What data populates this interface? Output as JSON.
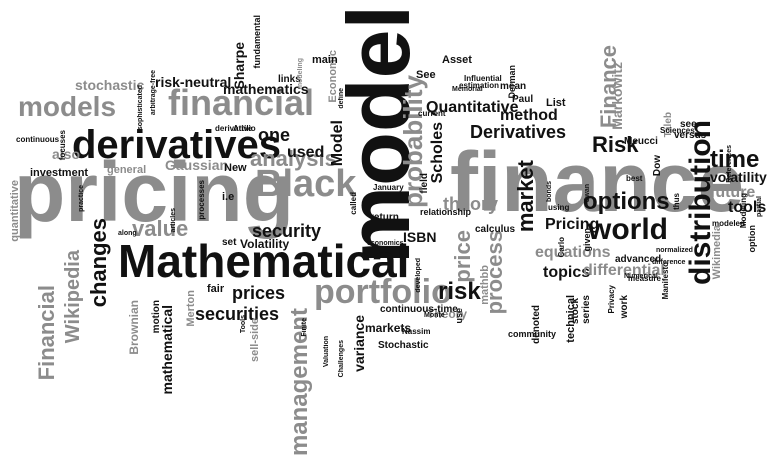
{
  "words": [
    "model",
    "finance",
    "pricing",
    "Mathematical",
    "derivatives",
    "financial",
    "models",
    "Black",
    "analysis",
    "portfolio",
    "risk",
    "market",
    "distribution",
    "time",
    "Risk",
    "options",
    "world",
    "probability",
    "Finance",
    "theory",
    "price",
    "process",
    "management",
    "changes",
    "Financial",
    "Wikipedia",
    "value",
    "prices",
    "securities",
    "security",
    "Derivatives",
    "method",
    "Quantitative",
    "Pricing",
    "equations",
    "topics",
    "differential",
    "mathematical",
    "Brownian",
    "Gaussian",
    "stochastic",
    "risk-neutral",
    "Sharpe",
    "mathematics",
    "Markowitz",
    "tools",
    "future",
    "volatility",
    "variance",
    "Scholes",
    "Model",
    "one",
    "used",
    "also",
    "Volatility",
    "ISBN",
    "markets",
    "Stochastic",
    "Theory",
    "quantitative",
    "investment",
    "general",
    "New",
    "i.e",
    "Merton",
    "motion",
    "fair",
    "set",
    "sell-side",
    "Economic",
    "fundamental",
    "links",
    "main",
    "Asset",
    "See",
    "List",
    "Paul",
    "mean",
    "Derman",
    "estimation",
    "Meucci",
    "Dow",
    "Taleb",
    "see",
    "versus",
    "modeled",
    "Wikimedia",
    "Modeling",
    "option",
    "work",
    "advanced",
    "given",
    "series",
    "technical",
    "denoted",
    "mathbb",
    "calculus",
    "field",
    "use",
    "relationship",
    "current",
    "January",
    "return",
    "economics",
    "called",
    "continuous-time",
    "Nassim",
    "Carlo",
    "stock",
    "community",
    "Sciences",
    "Numerical",
    "Privacy",
    "Manifesto",
    "difference",
    "measure",
    "best",
    "normalized",
    "Valuation",
    "Finite",
    "Challenges",
    "Tools",
    "along",
    "articles",
    "processes",
    "derivative",
    "Attilio",
    "focuses",
    "continuous",
    "practice",
    "sophisticated",
    "arbitrage-free",
    "define",
    "Influential",
    "Memorial",
    "bonds",
    "developed",
    "Monte",
    "Swan",
    "partial",
    "thus",
    "References",
    "using",
    "modeling",
    "utility"
  ]
}
